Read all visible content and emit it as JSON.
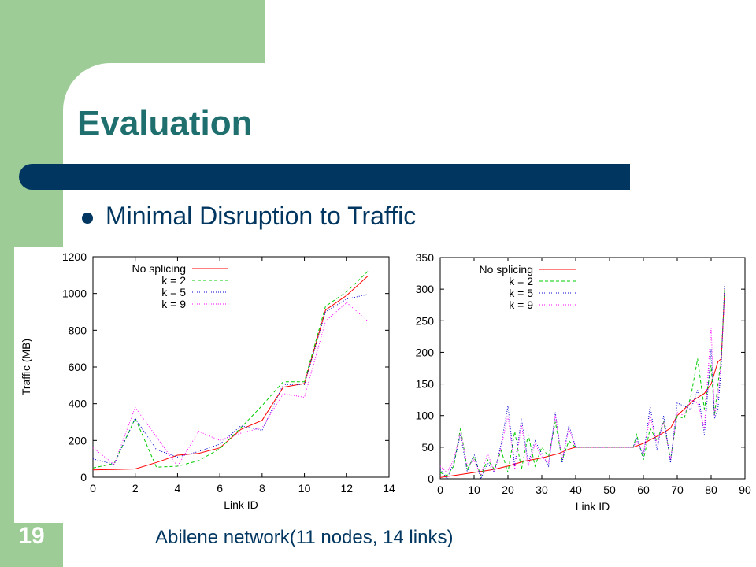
{
  "slide": {
    "title": "Evaluation",
    "bullet": "Minimal Disruption to Traffic",
    "caption": "Abilene network(11 nodes, 14 links)",
    "slide_number": "19",
    "colors": {
      "title": "#1f6f6f",
      "rule": "#003660",
      "accent_green": "#9dcc96",
      "text": "#003660"
    }
  },
  "chart_data": [
    {
      "type": "line",
      "xlabel": "Link ID",
      "ylabel": "Traffic (MB)",
      "xlim": [
        0,
        14
      ],
      "ylim": [
        0,
        1200
      ],
      "xticks": [
        0,
        2,
        4,
        6,
        8,
        10,
        12,
        14
      ],
      "yticks": [
        0,
        200,
        400,
        600,
        800,
        1000,
        1200
      ],
      "grid": false,
      "legend_position": "top-left",
      "series": [
        {
          "name": "No splicing",
          "color": "#ff0000",
          "dash": "",
          "x": [
            0,
            1,
            2,
            3,
            4,
            5,
            6,
            7,
            8,
            9,
            10,
            11,
            12,
            13
          ],
          "y": [
            40,
            42,
            45,
            80,
            120,
            130,
            160,
            260,
            310,
            490,
            510,
            910,
            990,
            1095
          ]
        },
        {
          "name": "k = 2",
          "color": "#00cc00",
          "dash": "4,3",
          "x": [
            0,
            1,
            2,
            3,
            4,
            5,
            6,
            7,
            8,
            9,
            10,
            11,
            12,
            13
          ],
          "y": [
            50,
            75,
            320,
            55,
            60,
            90,
            155,
            270,
            390,
            520,
            520,
            930,
            1010,
            1120
          ]
        },
        {
          "name": "k = 5",
          "color": "#0000cc",
          "dash": "1,2",
          "x": [
            0,
            1,
            2,
            3,
            4,
            5,
            6,
            7,
            8,
            9,
            10,
            11,
            12,
            13
          ],
          "y": [
            100,
            70,
            320,
            150,
            110,
            140,
            180,
            280,
            255,
            505,
            505,
            900,
            970,
            995
          ]
        },
        {
          "name": "k = 9",
          "color": "#ff00ff",
          "dash": "1,2",
          "x": [
            0,
            1,
            2,
            3,
            4,
            5,
            6,
            7,
            8,
            9,
            10,
            11,
            12,
            13
          ],
          "y": [
            160,
            70,
            380,
            220,
            60,
            250,
            200,
            240,
            270,
            455,
            435,
            850,
            950,
            850
          ]
        }
      ]
    },
    {
      "type": "line",
      "xlabel": "Link ID",
      "ylabel": "",
      "xlim": [
        0,
        90
      ],
      "ylim": [
        0,
        350
      ],
      "xticks": [
        0,
        10,
        20,
        30,
        40,
        50,
        60,
        70,
        80,
        90
      ],
      "yticks": [
        0,
        50,
        100,
        150,
        200,
        250,
        300,
        350
      ],
      "grid": false,
      "legend_position": "top-left",
      "series": [
        {
          "name": "No splicing",
          "color": "#ff0000",
          "dash": "",
          "x": [
            0,
            5,
            10,
            15,
            20,
            25,
            30,
            35,
            38,
            40,
            45,
            50,
            55,
            57,
            60,
            65,
            68,
            70,
            75,
            78,
            80,
            82,
            83,
            84
          ],
          "y": [
            2,
            6,
            10,
            14,
            20,
            28,
            33,
            40,
            47,
            50,
            50,
            50,
            50,
            50,
            56,
            70,
            80,
            100,
            125,
            135,
            150,
            185,
            190,
            300
          ]
        },
        {
          "name": "k = 2",
          "color": "#00cc00",
          "dash": "4,3",
          "x": [
            0,
            2,
            4,
            6,
            8,
            10,
            12,
            14,
            16,
            18,
            20,
            22,
            24,
            26,
            28,
            30,
            32,
            34,
            36,
            38,
            40,
            45,
            50,
            55,
            57,
            58,
            60,
            62,
            64,
            66,
            68,
            70,
            72,
            74,
            76,
            78,
            80,
            81,
            82,
            83,
            84
          ],
          "y": [
            10,
            5,
            20,
            80,
            15,
            35,
            5,
            30,
            15,
            45,
            10,
            75,
            15,
            70,
            20,
            50,
            35,
            90,
            30,
            60,
            50,
            50,
            50,
            50,
            50,
            70,
            30,
            80,
            60,
            90,
            30,
            100,
            95,
            130,
            190,
            110,
            180,
            100,
            150,
            190,
            300
          ]
        },
        {
          "name": "k = 5",
          "color": "#0000cc",
          "dash": "1,2",
          "x": [
            0,
            2,
            4,
            6,
            8,
            10,
            12,
            14,
            16,
            18,
            20,
            22,
            24,
            26,
            28,
            30,
            32,
            34,
            36,
            38,
            40,
            45,
            50,
            55,
            57,
            58,
            60,
            62,
            64,
            66,
            68,
            70,
            72,
            74,
            76,
            78,
            80,
            81,
            82,
            83,
            84
          ],
          "y": [
            15,
            0,
            25,
            70,
            10,
            40,
            0,
            25,
            10,
            55,
            115,
            20,
            95,
            25,
            60,
            40,
            20,
            105,
            25,
            85,
            50,
            50,
            50,
            50,
            50,
            65,
            35,
            115,
            45,
            100,
            25,
            120,
            115,
            110,
            140,
            70,
            205,
            95,
            110,
            180,
            308
          ]
        },
        {
          "name": "k = 9",
          "color": "#ff00ff",
          "dash": "1,2",
          "x": [
            0,
            2,
            4,
            6,
            8,
            10,
            12,
            14,
            16,
            18,
            20,
            22,
            24,
            26,
            28,
            30,
            32,
            34,
            36,
            38,
            40,
            45,
            50,
            55,
            57,
            58,
            60,
            62,
            64,
            66,
            68,
            70,
            72,
            74,
            76,
            78,
            80,
            81,
            82,
            83,
            84
          ],
          "y": [
            20,
            10,
            30,
            75,
            20,
            30,
            5,
            40,
            10,
            50,
            100,
            15,
            85,
            20,
            55,
            35,
            25,
            100,
            30,
            80,
            50,
            50,
            50,
            50,
            50,
            60,
            40,
            100,
            55,
            90,
            30,
            105,
            100,
            125,
            120,
            80,
            240,
            100,
            130,
            190,
            290
          ]
        }
      ]
    }
  ]
}
